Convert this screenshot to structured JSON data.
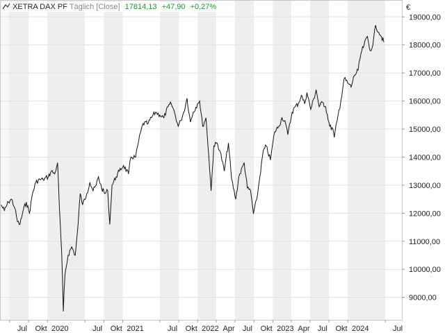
{
  "header": {
    "instrument": "XETRA DAX PF",
    "mode": "Täglich [Close]",
    "last": "17814,13",
    "change": "+47,90",
    "change_pct": "+0,27%"
  },
  "colors": {
    "line": "#111111",
    "band": "#eeeeee",
    "grid": "#e0e0e0",
    "positive": "#1a9a2f"
  },
  "chart_data": {
    "type": "line",
    "title": "",
    "xlabel": "",
    "ylabel": "€",
    "grid": true,
    "x_range": [
      "2019-05-15",
      "2024-09-20"
    ],
    "ylim": [
      8200,
      19600
    ],
    "y_ticks": [
      {
        "value": 9000,
        "label": "9000,00"
      },
      {
        "value": 10000,
        "label": "10000,00"
      },
      {
        "value": 11000,
        "label": "11000,00"
      },
      {
        "value": 12000,
        "label": "12000,00"
      },
      {
        "value": 13000,
        "label": "13000,00"
      },
      {
        "value": 14000,
        "label": "14000,00"
      },
      {
        "value": 15000,
        "label": "15000,00"
      },
      {
        "value": 16000,
        "label": "16000,00"
      },
      {
        "value": 17000,
        "label": "17000,00"
      },
      {
        "value": 18000,
        "label": "18000,00"
      },
      {
        "value": 19000,
        "label": "19000,00"
      }
    ],
    "x_ticks": [
      {
        "date": "2019-07-01",
        "label": "Jul"
      },
      {
        "date": "2019-10-01",
        "label": "Okt"
      },
      {
        "date": "2020-01-01",
        "label": "2020"
      },
      {
        "date": "2020-07-01",
        "label": "Jul"
      },
      {
        "date": "2020-10-01",
        "label": "Okt"
      },
      {
        "date": "2021-01-01",
        "label": "2021"
      },
      {
        "date": "2021-07-01",
        "label": "Jul"
      },
      {
        "date": "2021-10-01",
        "label": "Okt"
      },
      {
        "date": "2022-01-01",
        "label": "2022"
      },
      {
        "date": "2022-04-01",
        "label": "Apr"
      },
      {
        "date": "2022-07-01",
        "label": "Jul"
      },
      {
        "date": "2022-10-01",
        "label": "Okt"
      },
      {
        "date": "2023-01-01",
        "label": "2023"
      },
      {
        "date": "2023-04-01",
        "label": "Apr"
      },
      {
        "date": "2023-07-01",
        "label": "Jul"
      },
      {
        "date": "2023-10-01",
        "label": "Okt"
      },
      {
        "date": "2024-01-01",
        "label": "2024"
      },
      {
        "date": "2024-07-01",
        "label": "Jul"
      }
    ],
    "series": [
      {
        "points": [
          [
            "2019-05-20",
            12300
          ],
          [
            "2019-06-05",
            12100
          ],
          [
            "2019-06-25",
            12400
          ],
          [
            "2019-07-10",
            12500
          ],
          [
            "2019-07-25",
            12200
          ],
          [
            "2019-08-08",
            11700
          ],
          [
            "2019-08-20",
            11600
          ],
          [
            "2019-09-05",
            12100
          ],
          [
            "2019-09-20",
            12400
          ],
          [
            "2019-10-05",
            12000
          ],
          [
            "2019-10-20",
            12700
          ],
          [
            "2019-11-05",
            13100
          ],
          [
            "2019-11-25",
            13200
          ],
          [
            "2019-12-10",
            13200
          ],
          [
            "2020-01-05",
            13300
          ],
          [
            "2020-01-20",
            13500
          ],
          [
            "2020-02-05",
            13400
          ],
          [
            "2020-02-19",
            13800
          ],
          [
            "2020-02-28",
            12200
          ],
          [
            "2020-03-10",
            10600
          ],
          [
            "2020-03-18",
            8500
          ],
          [
            "2020-03-26",
            9800
          ],
          [
            "2020-04-10",
            10500
          ],
          [
            "2020-04-28",
            10800
          ],
          [
            "2020-05-15",
            10500
          ],
          [
            "2020-05-29",
            11600
          ],
          [
            "2020-06-08",
            12700
          ],
          [
            "2020-06-20",
            12300
          ],
          [
            "2020-07-10",
            12700
          ],
          [
            "2020-07-25",
            13100
          ],
          [
            "2020-08-10",
            12800
          ],
          [
            "2020-08-25",
            13000
          ],
          [
            "2020-09-05",
            13300
          ],
          [
            "2020-09-20",
            12900
          ],
          [
            "2020-10-05",
            12700
          ],
          [
            "2020-10-20",
            12800
          ],
          [
            "2020-10-30",
            11600
          ],
          [
            "2020-11-10",
            13000
          ],
          [
            "2020-11-30",
            13300
          ],
          [
            "2020-12-15",
            13500
          ],
          [
            "2021-01-05",
            13700
          ],
          [
            "2021-01-29",
            13400
          ],
          [
            "2021-02-10",
            14000
          ],
          [
            "2021-03-05",
            14000
          ],
          [
            "2021-03-20",
            14600
          ],
          [
            "2021-04-10",
            15200
          ],
          [
            "2021-05-05",
            15200
          ],
          [
            "2021-05-20",
            15400
          ],
          [
            "2021-06-10",
            15600
          ],
          [
            "2021-07-01",
            15500
          ],
          [
            "2021-07-20",
            15400
          ],
          [
            "2021-08-10",
            15800
          ],
          [
            "2021-08-25",
            15900
          ],
          [
            "2021-09-10",
            15600
          ],
          [
            "2021-09-28",
            15100
          ],
          [
            "2021-10-10",
            15300
          ],
          [
            "2021-10-25",
            15600
          ],
          [
            "2021-11-10",
            16100
          ],
          [
            "2021-11-26",
            15250
          ],
          [
            "2021-12-10",
            15600
          ],
          [
            "2021-12-31",
            15900
          ],
          [
            "2022-01-10",
            16000
          ],
          [
            "2022-01-25",
            15100
          ],
          [
            "2022-02-10",
            15400
          ],
          [
            "2022-02-24",
            14000
          ],
          [
            "2022-03-07",
            12800
          ],
          [
            "2022-03-20",
            14400
          ],
          [
            "2022-04-05",
            14500
          ],
          [
            "2022-04-20",
            14200
          ],
          [
            "2022-05-10",
            13500
          ],
          [
            "2022-05-30",
            14500
          ],
          [
            "2022-06-15",
            13200
          ],
          [
            "2022-07-05",
            12500
          ],
          [
            "2022-07-20",
            13300
          ],
          [
            "2022-08-15",
            13800
          ],
          [
            "2022-08-30",
            12900
          ],
          [
            "2022-09-15",
            12800
          ],
          [
            "2022-09-29",
            11975
          ],
          [
            "2022-10-15",
            12500
          ],
          [
            "2022-10-30",
            13300
          ],
          [
            "2022-11-15",
            14200
          ],
          [
            "2022-11-30",
            14400
          ],
          [
            "2022-12-20",
            13900
          ],
          [
            "2023-01-10",
            14900
          ],
          [
            "2023-01-30",
            15100
          ],
          [
            "2023-02-15",
            15400
          ],
          [
            "2023-03-01",
            15300
          ],
          [
            "2023-03-15",
            14800
          ],
          [
            "2023-04-05",
            15600
          ],
          [
            "2023-04-20",
            15800
          ],
          [
            "2023-05-05",
            15900
          ],
          [
            "2023-05-20",
            16200
          ],
          [
            "2023-06-05",
            15900
          ],
          [
            "2023-06-16",
            16300
          ],
          [
            "2023-07-05",
            15700
          ],
          [
            "2023-07-31",
            16400
          ],
          [
            "2023-08-15",
            15800
          ],
          [
            "2023-08-31",
            15950
          ],
          [
            "2023-09-15",
            15800
          ],
          [
            "2023-10-05",
            15100
          ],
          [
            "2023-10-20",
            15000
          ],
          [
            "2023-10-27",
            14700
          ],
          [
            "2023-11-10",
            15300
          ],
          [
            "2023-11-28",
            16000
          ],
          [
            "2023-12-14",
            16800
          ],
          [
            "2024-01-05",
            16600
          ],
          [
            "2024-01-17",
            16500
          ],
          [
            "2024-02-01",
            16900
          ],
          [
            "2024-02-20",
            17100
          ],
          [
            "2024-03-05",
            17700
          ],
          [
            "2024-03-20",
            18000
          ],
          [
            "2024-04-05",
            18300
          ],
          [
            "2024-04-18",
            17800
          ],
          [
            "2024-05-02",
            18000
          ],
          [
            "2024-05-15",
            18700
          ],
          [
            "2024-05-30",
            18450
          ],
          [
            "2024-06-12",
            18300
          ],
          [
            "2024-06-24",
            18100
          ]
        ]
      }
    ]
  }
}
